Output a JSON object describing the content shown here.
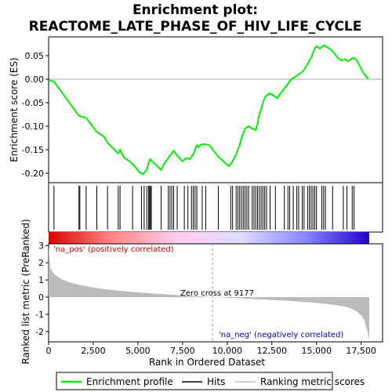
{
  "chart_data": {
    "title_line1": "Enrichment plot:",
    "title_line2": "REACTOME_LATE_PHASE_OF_HIV_LIFE_CYCLE",
    "type": "line",
    "es_panel": {
      "ylabel": "Enrichment score (ES)",
      "ylim": [
        -0.22,
        0.09
      ],
      "yticks": [
        -0.2,
        -0.15,
        -0.1,
        -0.05,
        0.0,
        0.05
      ],
      "ytick_labels": [
        "-0.20",
        "-0.15",
        "-0.10",
        "-0.05",
        "0.00",
        "0.05"
      ],
      "series": [
        {
          "name": "Enrichment profile",
          "color": "#00ee00",
          "x": [
            0,
            300,
            1700,
            2100,
            2700,
            3100,
            3300,
            3900,
            4000,
            4200,
            4700,
            5100,
            5300,
            5500,
            5600,
            5700,
            5800,
            6100,
            6300,
            6500,
            6700,
            6800,
            6900,
            7000,
            7200,
            7500,
            7700,
            7900,
            8100,
            8300,
            8400,
            8500,
            8700,
            9000,
            9300,
            9500,
            9800,
            10100,
            10300,
            10500,
            10700,
            10800,
            10900,
            11000,
            11200,
            11400,
            11600,
            11700,
            11800,
            11900,
            12000,
            12100,
            12200,
            12400,
            12600,
            12800,
            13000,
            13200,
            13400,
            13600,
            13800,
            14000,
            14200,
            14400,
            14600,
            14700,
            14800,
            14900,
            15000,
            15200,
            15400,
            15600,
            15800,
            16000,
            16200,
            16400,
            16600,
            16800,
            17000,
            17200,
            17400,
            17600,
            17900
          ],
          "values": [
            -0.002,
            -0.005,
            -0.078,
            -0.082,
            -0.112,
            -0.122,
            -0.135,
            -0.158,
            -0.15,
            -0.165,
            -0.18,
            -0.198,
            -0.202,
            -0.192,
            -0.178,
            -0.17,
            -0.175,
            -0.185,
            -0.193,
            -0.178,
            -0.168,
            -0.162,
            -0.158,
            -0.152,
            -0.162,
            -0.175,
            -0.168,
            -0.17,
            -0.16,
            -0.14,
            -0.145,
            -0.14,
            -0.138,
            -0.14,
            -0.155,
            -0.165,
            -0.175,
            -0.185,
            -0.175,
            -0.16,
            -0.14,
            -0.125,
            -0.115,
            -0.105,
            -0.1,
            -0.105,
            -0.108,
            -0.095,
            -0.075,
            -0.065,
            -0.05,
            -0.04,
            -0.035,
            -0.03,
            -0.035,
            -0.04,
            -0.03,
            -0.02,
            -0.01,
            0.0,
            0.005,
            0.01,
            0.015,
            0.025,
            0.04,
            0.045,
            0.055,
            0.065,
            0.07,
            0.065,
            0.072,
            0.068,
            0.063,
            0.055,
            0.045,
            0.04,
            0.042,
            0.038,
            0.045,
            0.043,
            0.03,
            0.015,
            0.0
          ]
        }
      ]
    },
    "hits": [
      300,
      1700,
      1750,
      2100,
      2700,
      3300,
      3900,
      4000,
      4700,
      5200,
      5350,
      5500,
      5600,
      5650,
      5700,
      5750,
      6300,
      6700,
      6800,
      6900,
      7000,
      7200,
      7600,
      7800,
      8000,
      8100,
      8200,
      8300,
      8600,
      8800,
      9500,
      10200,
      10300,
      10500,
      10600,
      10700,
      10800,
      10900,
      11000,
      11100,
      11200,
      11400,
      11500,
      11600,
      11700,
      11800,
      11900,
      12000,
      12100,
      12200,
      12400,
      12700,
      13200,
      13400,
      13500,
      13700,
      13900,
      14000,
      14200,
      14300,
      14500,
      14600,
      14700,
      14800,
      14900,
      15000,
      15300,
      15400,
      15500,
      15900,
      16500,
      16700,
      17000,
      17100
    ],
    "metric_panel": {
      "ylabel": "Ranked list metric (PreRanked)",
      "ylim": [
        -2.6,
        3.1
      ],
      "yticks": [
        -2,
        -1,
        0,
        1,
        2,
        3
      ],
      "ytick_labels": [
        "-2",
        "-1",
        "0",
        "1",
        "2",
        "3"
      ],
      "x": [
        0,
        100,
        300,
        700,
        1200,
        2000,
        3000,
        4500,
        6000,
        7500,
        9177,
        10500,
        12000,
        13500,
        15000,
        16000,
        16800,
        17200,
        17500,
        17700,
        17850,
        17950
      ],
      "values": [
        2.9,
        1.7,
        1.35,
        1.05,
        0.85,
        0.65,
        0.48,
        0.32,
        0.2,
        0.1,
        0.0,
        -0.06,
        -0.14,
        -0.22,
        -0.33,
        -0.45,
        -0.6,
        -0.8,
        -1.05,
        -1.4,
        -2.0,
        -2.5
      ],
      "color": "#bbbbbb"
    },
    "xaxis": {
      "label": "Rank in Ordered Dataset",
      "xlim": [
        0,
        18700
      ],
      "ticks": [
        0,
        2500,
        5000,
        7500,
        10000,
        12500,
        15000,
        17500
      ],
      "tick_labels": [
        "0",
        "2,500",
        "5,000",
        "7,500",
        "10,000",
        "12,500",
        "15,000",
        "17,500"
      ]
    },
    "dataset_end": 17950,
    "zero_cross": 9177,
    "annotations": {
      "pos_label": "'na_pos' (positively correlated)",
      "neg_label": "'na_neg' (negatively correlated)",
      "zero_label": "Zero cross at 9177"
    },
    "legend": {
      "placement": "bottom",
      "items": [
        {
          "label": "Enrichment profile",
          "color": "#00ee00"
        },
        {
          "label": "Hits",
          "color": "#000000"
        },
        {
          "label": "Ranking metric scores",
          "color": "#bbbbbb"
        }
      ]
    },
    "colors": {
      "pos_label": "#cc0000",
      "neg_label": "#0000cc",
      "bar_gradient": [
        "#dd0000",
        "#ff8888",
        "#ffccee",
        "#ddddff",
        "#8888ff",
        "#2200cc"
      ]
    }
  }
}
